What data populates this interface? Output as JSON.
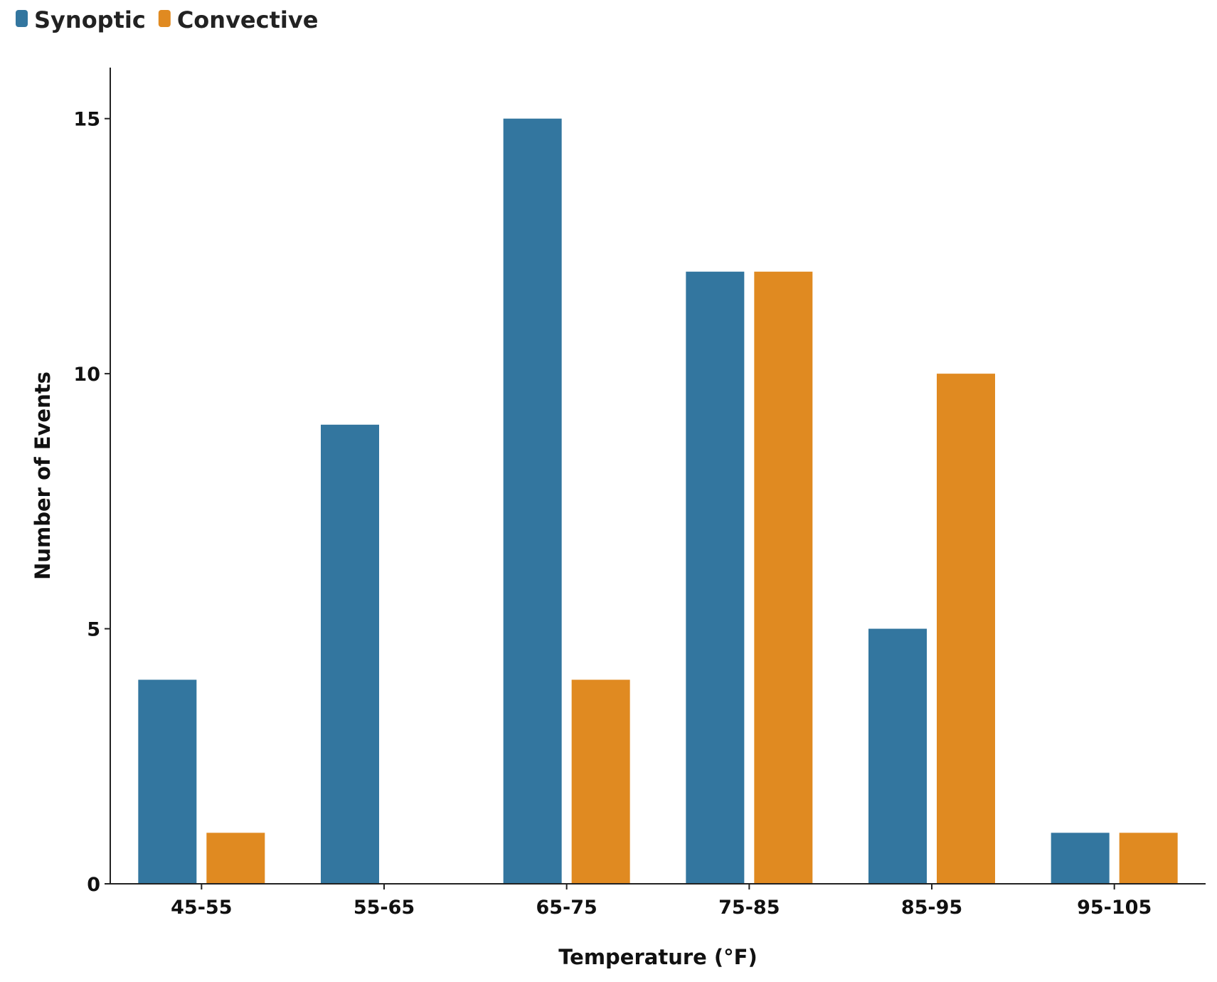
{
  "chart_data": {
    "type": "bar",
    "title": "",
    "xlabel": "Temperature (°F)",
    "ylabel": "Number of Events",
    "categories": [
      "45-55",
      "55-65",
      "65-75",
      "75-85",
      "85-95",
      "95-105"
    ],
    "series": [
      {
        "name": "Synoptic",
        "color": "#33769f",
        "values": [
          4,
          9,
          15,
          12,
          5,
          1
        ]
      },
      {
        "name": "Convective",
        "color": "#e08a21",
        "values": [
          1,
          0,
          4,
          12,
          10,
          1
        ]
      }
    ],
    "ylim": [
      0,
      16
    ],
    "yticks": [
      0,
      5,
      10,
      15
    ],
    "grid": false,
    "legend_position": "top-left"
  }
}
